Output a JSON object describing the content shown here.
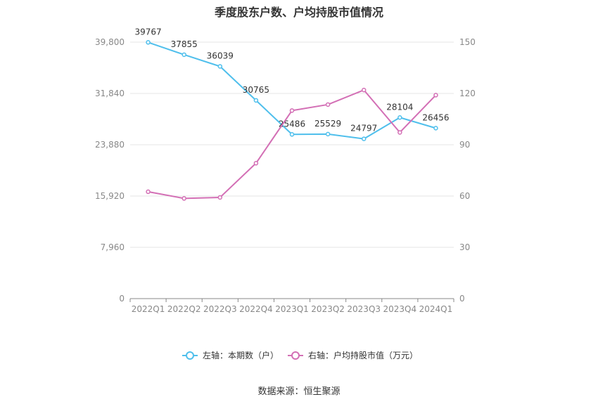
{
  "title": "季度股东户数、户均持股市值情况",
  "source": "数据来源：恒生聚源",
  "chart_data": {
    "type": "line",
    "categories": [
      "2022Q1",
      "2022Q2",
      "2022Q3",
      "2022Q4",
      "2023Q1",
      "2023Q2",
      "2023Q3",
      "2023Q4",
      "2024Q1"
    ],
    "series": [
      {
        "name": "左轴：本期数（户）",
        "axis": "left",
        "color": "#4fbfec",
        "values": [
          39767,
          37855,
          36039,
          30765,
          25486,
          25529,
          24797,
          28104,
          26456
        ],
        "labels": [
          "39767",
          "37855",
          "36039",
          "30765",
          "25486",
          "25529",
          "24797",
          "28104",
          "26456"
        ]
      },
      {
        "name": "右轴：户均持股市值（万元）",
        "axis": "right",
        "color": "#d36fb5",
        "values": [
          62.5,
          58.6,
          59.2,
          79.2,
          110.0,
          113.5,
          122.0,
          97.2,
          119.0
        ]
      }
    ],
    "left_axis": {
      "ylim": [
        0,
        39800
      ],
      "ticks": [
        0,
        7960,
        15920,
        23880,
        31840,
        39800
      ],
      "tick_labels": [
        "0",
        "7,960",
        "15,920",
        "23,880",
        "31,840",
        "39,800"
      ]
    },
    "right_axis": {
      "ylim": [
        0,
        150
      ],
      "ticks": [
        0,
        30,
        60,
        90,
        120,
        150
      ],
      "tick_labels": [
        "0",
        "30",
        "60",
        "90",
        "120",
        "150"
      ]
    },
    "grid": true,
    "legend_position": "bottom"
  }
}
